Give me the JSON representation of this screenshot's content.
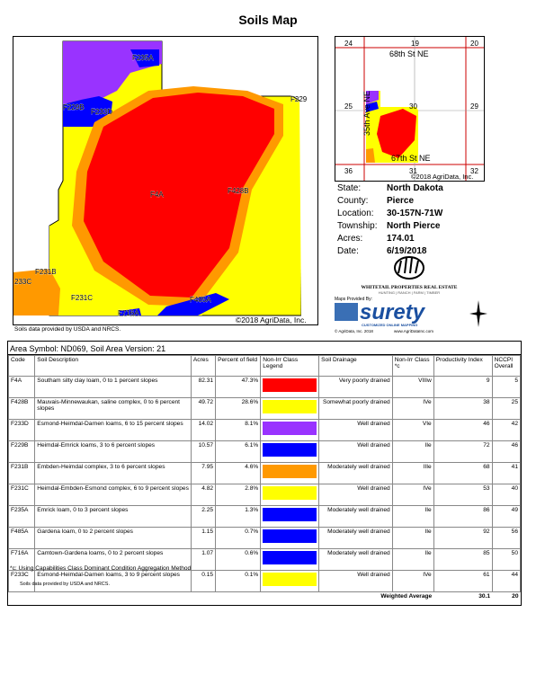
{
  "title": "Soils Map",
  "map": {
    "copyright": "©2018 AgriData, Inc.",
    "source_note": "Soils data provided by USDA and NRCS.",
    "labels": [
      "F235A",
      "F229B",
      "F233D",
      "F229",
      "F4A",
      "F428B",
      "F231B",
      "233C",
      "F231C",
      "F485A",
      "F716A"
    ],
    "colors": {
      "red": "#ff0000",
      "yellow": "#ffff00",
      "purple": "#9933ff",
      "blue": "#0000ff",
      "orange": "#ff9900"
    }
  },
  "locator": {
    "sections": [
      "24",
      "19",
      "20",
      "25",
      "30",
      "29",
      "36",
      "31",
      "32"
    ],
    "roads": [
      "68th St NE",
      "67th St NE",
      "35th Ave NE"
    ],
    "copyright": "©2018 AgriData, Inc."
  },
  "info": [
    {
      "label": "State:",
      "value": "North Dakota"
    },
    {
      "label": "County:",
      "value": "Pierce"
    },
    {
      "label": "Location:",
      "value": "30-157N-71W"
    },
    {
      "label": "Township:",
      "value": "North Pierce"
    },
    {
      "label": "Acres:",
      "value": "174.01"
    },
    {
      "label": "Date:",
      "value": "6/19/2018"
    }
  ],
  "logos": {
    "wsp_name": "WHITETAIL PROPERTIES REAL ESTATE",
    "wsp_tag": "HUNTING | RANCH | FARM | TIMBER",
    "maps_by": "Maps Provided By:",
    "surety": "surety",
    "surety_tag": "CUSTOMIZED ONLINE MAPPING",
    "surety_copy": "© AgriData, Inc. 2018",
    "surety_url": "www.AgriDataInc.com"
  },
  "table": {
    "area_symbol": "Area Symbol: ND069, Soil Area Version: 21",
    "headers": [
      "Code",
      "Soil Description",
      "Acres",
      "Percent of field",
      "Non-Irr Class Legend",
      "Soil Drainage",
      "Non-Irr Class *c",
      "Productivity Index",
      "NCCPI Overall"
    ],
    "rows": [
      {
        "code": "F4A",
        "desc": "Southam silty clay loam, 0 to 1 percent slopes",
        "acres": "82.31",
        "pct": "47.3%",
        "color": "#ff0000",
        "drain": "Very poorly drained",
        "cls": "VIIIw",
        "pi": "9",
        "nccpi": "5"
      },
      {
        "code": "F428B",
        "desc": "Mauvais-Minnewaukan, saline complex, 0 to 6 percent slopes",
        "acres": "49.72",
        "pct": "28.6%",
        "color": "#ffff00",
        "drain": "Somewhat poorly drained",
        "cls": "IVe",
        "pi": "38",
        "nccpi": "25"
      },
      {
        "code": "F233D",
        "desc": "Esmond-Heimdal-Darnen loams, 6 to 15 percent slopes",
        "acres": "14.02",
        "pct": "8.1%",
        "color": "#9933ff",
        "drain": "Well drained",
        "cls": "VIe",
        "pi": "46",
        "nccpi": "42"
      },
      {
        "code": "F229B",
        "desc": "Heimdal-Emrick loams, 3 to 6 percent slopes",
        "acres": "10.57",
        "pct": "6.1%",
        "color": "#0000ff",
        "drain": "Well drained",
        "cls": "IIe",
        "pi": "72",
        "nccpi": "46"
      },
      {
        "code": "F231B",
        "desc": "Embden-Heimdal complex, 3 to 6 percent slopes",
        "acres": "7.95",
        "pct": "4.6%",
        "color": "#ff9900",
        "drain": "Moderately well drained",
        "cls": "IIIe",
        "pi": "68",
        "nccpi": "41"
      },
      {
        "code": "F231C",
        "desc": "Heimdal-Embden-Esmond complex, 6 to 9 percent slopes",
        "acres": "4.82",
        "pct": "2.8%",
        "color": "#ffff00",
        "drain": "Well drained",
        "cls": "IVe",
        "pi": "53",
        "nccpi": "40"
      },
      {
        "code": "F235A",
        "desc": "Emrick loam, 0 to 3 percent slopes",
        "acres": "2.25",
        "pct": "1.3%",
        "color": "#0000ff",
        "drain": "Moderately well drained",
        "cls": "IIe",
        "pi": "86",
        "nccpi": "49"
      },
      {
        "code": "F485A",
        "desc": "Gardena loam, 0 to 2 percent slopes",
        "acres": "1.15",
        "pct": "0.7%",
        "color": "#0000ff",
        "drain": "Moderately well drained",
        "cls": "IIe",
        "pi": "92",
        "nccpi": "56"
      },
      {
        "code": "F716A",
        "desc": "Camtown-Gardena loams, 0 to 2 percent slopes",
        "acres": "1.07",
        "pct": "0.6%",
        "color": "#0000ff",
        "drain": "Moderately well drained",
        "cls": "IIe",
        "pi": "85",
        "nccpi": "50"
      },
      {
        "code": "F233C",
        "desc": "Esmond-Heimdal-Darnen loams, 3 to 9 percent slopes",
        "acres": "0.15",
        "pct": "0.1%",
        "color": "#ffff00",
        "drain": "Well drained",
        "cls": "IVe",
        "pi": "61",
        "nccpi": "44"
      }
    ],
    "weighted_label": "Weighted Average",
    "weighted_pi": "30.1",
    "weighted_nccpi": "20"
  },
  "footnote": "*c: Using Capabilities Class Dominant Condition Aggregation Method",
  "bottom_note": "Soils data provided by USDA and NRCS."
}
